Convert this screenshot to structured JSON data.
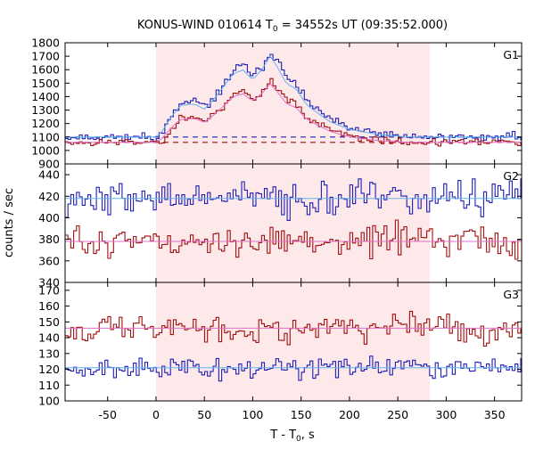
{
  "chart_data": {
    "type": "line",
    "title": "KONUS-WIND 010614 T",
    "title_sub": "0",
    "title_rest": " = 34552s UT (09:35:52.000)",
    "xlabel_main": "T - T",
    "xlabel_sub": "0",
    "xlabel_rest": ", s",
    "ylabel": "counts / sec",
    "x_range": [
      -94,
      378
    ],
    "x_ticks": [
      -50,
      0,
      50,
      100,
      150,
      200,
      250,
      300,
      350
    ],
    "x_tick_labels": [
      "-50",
      "0",
      "50",
      "100",
      "150",
      "200",
      "250",
      "300",
      "350"
    ],
    "shaded_interval": [
      0,
      283
    ],
    "colors": {
      "blue": "#1f1fb4",
      "red": "#a01010",
      "light_blue": "#64b4f0",
      "pink": "#e070c8",
      "shade": "#fde8ea"
    },
    "panels": [
      {
        "name": "G1",
        "ylim": [
          900,
          1800
        ],
        "y_ticks": [
          900,
          1000,
          1100,
          1200,
          1300,
          1400,
          1500,
          1600,
          1700,
          1800
        ],
        "y_tick_labels": [
          "900",
          "1000",
          "1100",
          "1200",
          "1300",
          "1400",
          "1500",
          "1600",
          "1700",
          "1800"
        ],
        "backgrounds": [
          {
            "color": "blue",
            "value": 1100
          },
          {
            "color": "red",
            "value": 1060
          }
        ],
        "profile": [
          [
            -94,
            0
          ],
          [
            0,
            0
          ],
          [
            5,
            30
          ],
          [
            15,
            150
          ],
          [
            25,
            250
          ],
          [
            40,
            260
          ],
          [
            50,
            220
          ],
          [
            60,
            300
          ],
          [
            70,
            400
          ],
          [
            80,
            500
          ],
          [
            90,
            530
          ],
          [
            100,
            450
          ],
          [
            110,
            540
          ],
          [
            118,
            640
          ],
          [
            125,
            560
          ],
          [
            135,
            420
          ],
          [
            145,
            380
          ],
          [
            155,
            260
          ],
          [
            165,
            200
          ],
          [
            180,
            120
          ],
          [
            200,
            60
          ],
          [
            230,
            20
          ],
          [
            260,
            0
          ],
          [
            378,
            0
          ]
        ],
        "series": [
          {
            "color": "blue",
            "amplitude": 1.0,
            "base": 1100,
            "noise": 22,
            "seed": 11
          },
          {
            "color": "red",
            "amplitude": 0.72,
            "base": 1060,
            "noise": 20,
            "seed": 23
          }
        ],
        "fits": [
          {
            "color": "light_blue",
            "amplitude": 0.94,
            "base": 1100
          },
          {
            "color": "pink",
            "amplitude": 0.68,
            "base": 1060
          }
        ]
      },
      {
        "name": "G2",
        "ylim": [
          340,
          450
        ],
        "y_ticks": [
          340,
          360,
          380,
          400,
          420,
          440
        ],
        "y_tick_labels": [
          "340",
          "360",
          "380",
          "400",
          "420",
          "440"
        ],
        "series": [
          {
            "color": "blue",
            "mean": 418,
            "noise": 11,
            "seed": 37
          },
          {
            "color": "red",
            "mean": 378,
            "noise": 10,
            "seed": 51
          }
        ],
        "fits": [
          {
            "color": "light_blue",
            "value": 418
          },
          {
            "color": "pink",
            "value": 378
          }
        ]
      },
      {
        "name": "G3",
        "ylim": [
          100,
          175
        ],
        "y_ticks": [
          100,
          110,
          120,
          130,
          140,
          150,
          160,
          170
        ],
        "y_tick_labels": [
          "100",
          "110",
          "120",
          "130",
          "140",
          "150",
          "160",
          "170"
        ],
        "series": [
          {
            "color": "red",
            "mean": 146,
            "noise": 6,
            "seed": 67
          },
          {
            "color": "blue",
            "mean": 121,
            "noise": 5,
            "seed": 79
          }
        ],
        "fits": [
          {
            "color": "pink",
            "value": 146
          },
          {
            "color": "light_blue",
            "value": 121
          }
        ]
      }
    ]
  }
}
